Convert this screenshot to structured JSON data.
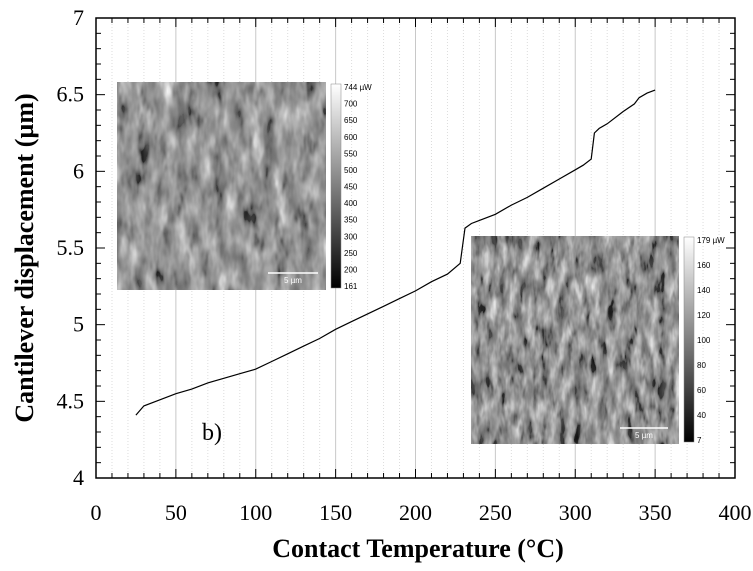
{
  "chart_data": {
    "type": "line",
    "xlabel": "Contact Temperature (°C)",
    "ylabel": "Cantilever displacement (µm)",
    "xlim": [
      0,
      400
    ],
    "ylim": [
      4,
      7
    ],
    "x_ticks": [
      "0",
      "50",
      "100",
      "150",
      "200",
      "250",
      "300",
      "350",
      "400"
    ],
    "y_ticks": [
      "4",
      "4.5",
      "5",
      "5.5",
      "6",
      "6.5",
      "7"
    ],
    "grid": true,
    "annotation": "b)",
    "series": [
      {
        "x": [
          25,
          30,
          40,
          50,
          60,
          70,
          80,
          90,
          100,
          110,
          120,
          130,
          140,
          150,
          160,
          170,
          180,
          190,
          200,
          210,
          220,
          228,
          231,
          235,
          240,
          250,
          260,
          270,
          280,
          290,
          300,
          305,
          310,
          312,
          315,
          320,
          330,
          337,
          340,
          345,
          350
        ],
        "y": [
          4.41,
          4.47,
          4.51,
          4.55,
          4.58,
          4.62,
          4.65,
          4.68,
          4.71,
          4.76,
          4.81,
          4.86,
          4.91,
          4.97,
          5.02,
          5.07,
          5.12,
          5.17,
          5.22,
          5.28,
          5.33,
          5.4,
          5.63,
          5.66,
          5.68,
          5.72,
          5.78,
          5.83,
          5.89,
          5.95,
          6.01,
          6.04,
          6.08,
          6.25,
          6.28,
          6.31,
          6.39,
          6.44,
          6.48,
          6.51,
          6.53
        ]
      }
    ]
  },
  "insets": [
    {
      "colorbar_ticks": [
        "744 µW",
        "700",
        "650",
        "600",
        "550",
        "500",
        "450",
        "400",
        "350",
        "300",
        "250",
        "200",
        "161"
      ],
      "scale_bar": "5 µm"
    },
    {
      "colorbar_ticks": [
        "179 µW",
        "160",
        "140",
        "120",
        "100",
        "80",
        "60",
        "40",
        "7"
      ],
      "scale_bar": "5 µm"
    }
  ]
}
